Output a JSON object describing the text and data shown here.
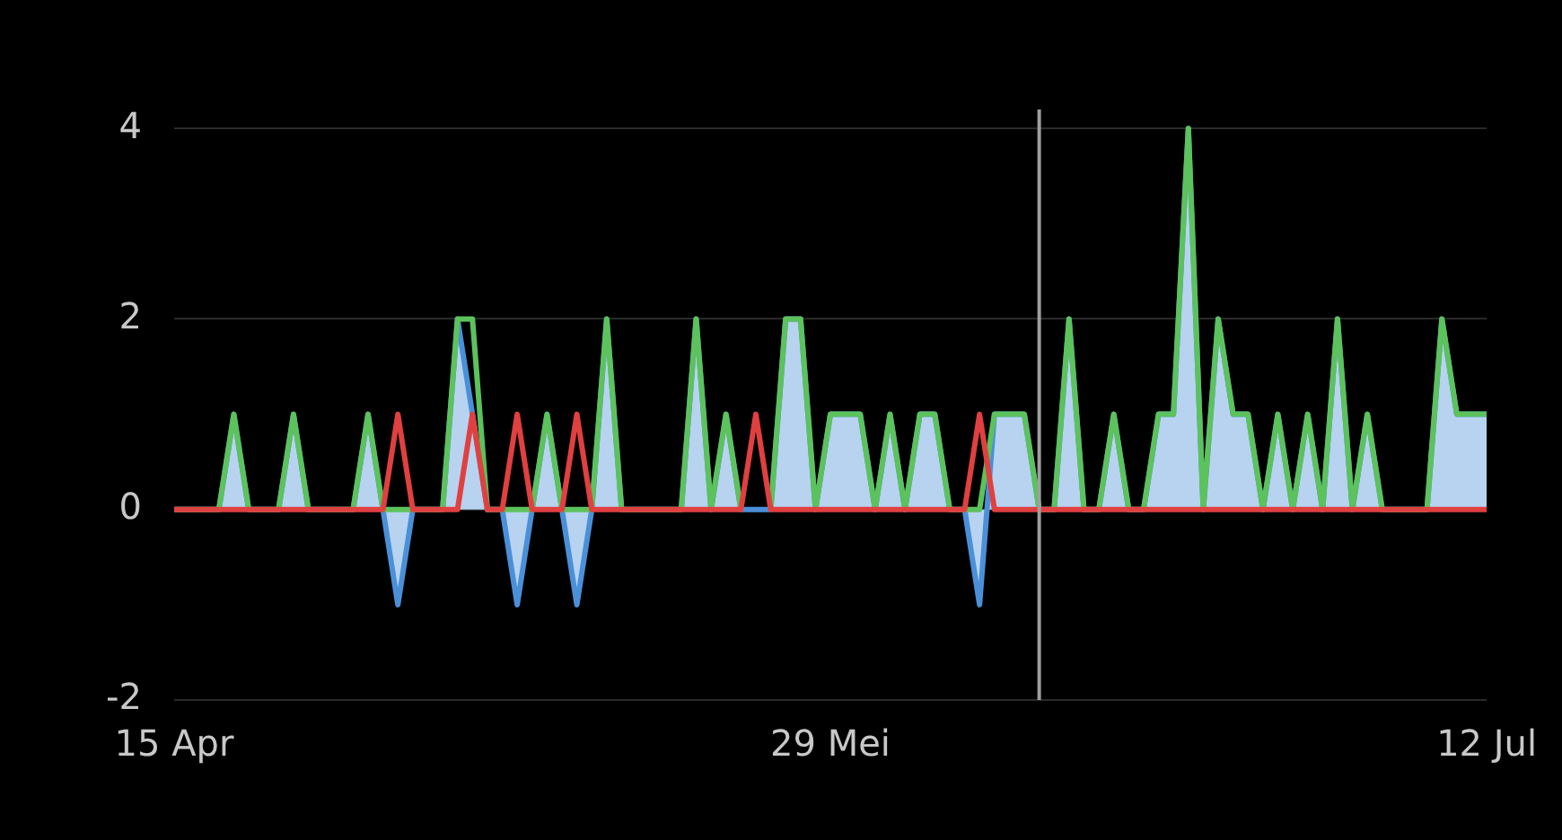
{
  "chart_data": {
    "type": "line",
    "x": [
      "--04-15",
      "--04-16",
      "--04-17",
      "--04-18",
      "--04-19",
      "--04-20",
      "--04-21",
      "--04-22",
      "--04-23",
      "--04-24",
      "--04-25",
      "--04-26",
      "--04-27",
      "--04-28",
      "--04-29",
      "--04-30",
      "--05-01",
      "--05-02",
      "--05-03",
      "--05-04",
      "--05-05",
      "--05-06",
      "--05-07",
      "--05-08",
      "--05-09",
      "--05-10",
      "--05-11",
      "--05-12",
      "--05-13",
      "--05-14",
      "--05-15",
      "--05-16",
      "--05-17",
      "--05-18",
      "--05-19",
      "--05-20",
      "--05-21",
      "--05-22",
      "--05-23",
      "--05-24",
      "--05-25",
      "--05-26",
      "--05-27",
      "--05-28",
      "--05-29",
      "--05-30",
      "--05-31",
      "--06-01",
      "--06-02",
      "--06-03",
      "--06-04",
      "--06-05",
      "--06-06",
      "--06-07",
      "--06-08",
      "--06-09",
      "--06-10",
      "--06-11",
      "--06-12",
      "--06-13",
      "--06-14",
      "--06-15",
      "--06-16",
      "--06-17",
      "--06-18",
      "--06-19",
      "--06-20",
      "--06-21",
      "--06-22",
      "--06-23",
      "--06-24",
      "--06-25",
      "--06-26",
      "--06-27",
      "--06-28",
      "--06-29",
      "--06-30",
      "--07-01",
      "--07-02",
      "--07-03",
      "--07-04",
      "--07-05",
      "--07-06",
      "--07-07",
      "--07-08",
      "--07-09",
      "--07-10",
      "--07-11",
      "--07-12"
    ],
    "series": [
      {
        "type": "area",
        "color": "#4a90d9",
        "values": [
          0,
          0,
          0,
          0,
          1,
          0,
          0,
          0,
          1,
          0,
          0,
          0,
          0,
          1,
          0,
          -1,
          0,
          0,
          0,
          2,
          1,
          0,
          0,
          -1,
          0,
          1,
          0,
          -1,
          0,
          2,
          0,
          0,
          0,
          0,
          0,
          2,
          0,
          1,
          0,
          0,
          0,
          2,
          2,
          0,
          1,
          1,
          1,
          0,
          1,
          0,
          1,
          1,
          0,
          0,
          -1,
          1,
          1,
          1,
          0,
          0,
          2,
          0,
          0,
          1,
          0,
          0,
          1,
          1,
          4,
          0,
          2,
          1,
          1,
          0,
          1,
          0,
          1,
          0,
          2,
          0,
          1,
          0,
          0,
          0,
          0,
          2,
          1,
          1,
          1
        ]
      },
      {
        "color": "#5cc25c",
        "values": [
          0,
          0,
          0,
          0,
          1,
          0,
          0,
          0,
          1,
          0,
          0,
          0,
          0,
          1,
          0,
          0,
          0,
          0,
          0,
          2,
          2,
          0,
          0,
          0,
          0,
          1,
          0,
          0,
          0,
          2,
          0,
          0,
          0,
          0,
          0,
          2,
          0,
          1,
          0,
          null,
          0,
          2,
          2,
          0,
          1,
          1,
          1,
          0,
          1,
          0,
          1,
          1,
          0,
          0,
          0,
          1,
          1,
          1,
          0,
          0,
          2,
          0,
          0,
          1,
          0,
          0,
          1,
          1,
          4,
          0,
          2,
          1,
          1,
          0,
          1,
          0,
          1,
          0,
          2,
          0,
          1,
          0,
          0,
          0,
          0,
          2,
          1,
          1,
          1
        ]
      },
      {
        "color": "#e04040",
        "values": [
          0,
          0,
          0,
          0,
          0,
          0,
          0,
          0,
          0,
          0,
          0,
          0,
          0,
          0,
          0,
          1,
          0,
          0,
          0,
          0,
          1,
          0,
          0,
          1,
          0,
          0,
          0,
          1,
          0,
          0,
          0,
          0,
          0,
          0,
          0,
          0,
          0,
          0,
          0,
          1,
          0,
          0,
          0,
          0,
          0,
          0,
          0,
          0,
          0,
          0,
          0,
          0,
          0,
          0,
          1,
          0,
          0,
          0,
          0,
          0,
          0,
          0,
          0,
          0,
          0,
          0,
          0,
          0,
          0,
          0,
          0,
          0,
          0,
          0,
          0,
          0,
          0,
          0,
          0,
          0,
          0,
          0,
          0,
          0,
          0,
          0,
          0,
          0,
          0
        ]
      }
    ],
    "xlim": [
      "--04-15",
      "--07-12"
    ],
    "xticks": [
      {
        "value": "--04-15",
        "label": "15 Apr"
      },
      {
        "value": "--05-29",
        "label": "29 Mei"
      },
      {
        "value": "--07-12",
        "label": "12 Jul"
      }
    ],
    "ylim": [
      -2,
      4.2
    ],
    "yticks": [
      -2,
      0,
      2,
      4
    ],
    "grid": "y",
    "legend": false,
    "marker": "none",
    "ref_lines": [
      {
        "axis": "x",
        "value": "--06-12",
        "color": "#9e9e9e"
      }
    ]
  }
}
